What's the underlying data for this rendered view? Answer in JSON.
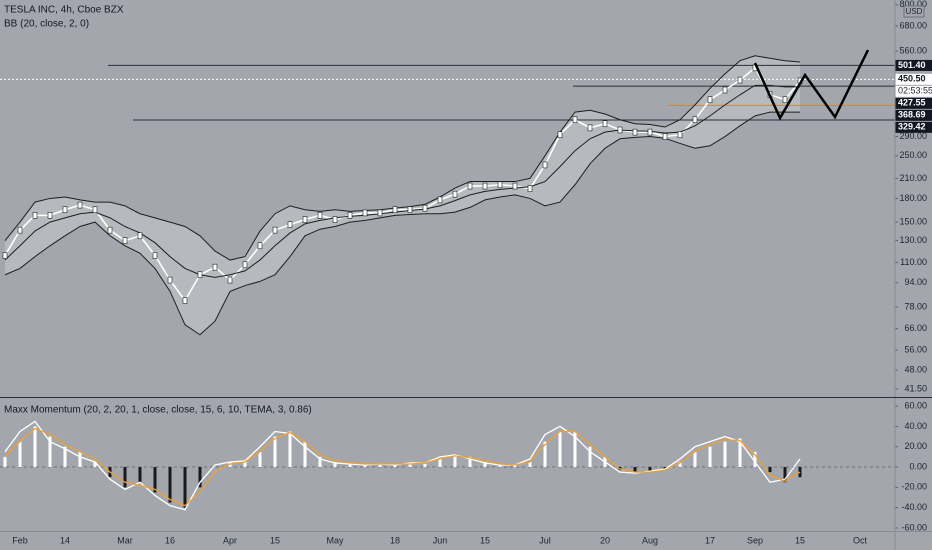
{
  "chart_data": [
    {
      "type": "line",
      "title": "TESLA INC, 4h, Cboe BZX",
      "subtitle": "BB (20, close, 2, 0)",
      "currency": "USD",
      "countdown": "02:53:55",
      "log_scale": true,
      "ylim": [
        39,
        830
      ],
      "yticks": [
        {
          "value": 800,
          "label": "800.00"
        },
        {
          "value": 680,
          "label": "680.00"
        },
        {
          "value": 560,
          "label": "560.00"
        },
        {
          "value": 290,
          "label": "290.00"
        },
        {
          "value": 250,
          "label": "250.00"
        },
        {
          "value": 210,
          "label": "210.00"
        },
        {
          "value": 180,
          "label": "180.00"
        },
        {
          "value": 150,
          "label": "150.00"
        },
        {
          "value": 130,
          "label": "130.00"
        },
        {
          "value": 110,
          "label": "110.00"
        },
        {
          "value": 94,
          "label": "94.00"
        },
        {
          "value": 78,
          "label": "78.00"
        },
        {
          "value": 66,
          "label": "66.00"
        },
        {
          "value": 56,
          "label": "56.00"
        },
        {
          "value": 48,
          "label": "48.00"
        },
        {
          "value": 41.5,
          "label": "41.50"
        }
      ],
      "price_levels": [
        {
          "value": 501.4,
          "label": "501.40",
          "color": "#2a2e39"
        },
        {
          "value": 450.5,
          "label": "450.50",
          "color": "#ffffff"
        },
        {
          "value": 427.55,
          "label": "427.55",
          "color": "#2a2e39"
        },
        {
          "value": 368.69,
          "label": "368.69",
          "color": "#c98a2b"
        },
        {
          "value": 329.42,
          "label": "329.42",
          "color": "#2a2e39"
        }
      ],
      "categories": [
        null,
        "Feb",
        null,
        null,
        "14",
        null,
        null,
        null,
        "Mar",
        null,
        null,
        "16",
        null,
        null,
        null,
        "Apr",
        null,
        null,
        "15",
        null,
        null,
        null,
        "May",
        null,
        null,
        null,
        "18",
        null,
        null,
        "Jun",
        null,
        null,
        "15",
        null,
        null,
        null,
        "Jul",
        null,
        null,
        null,
        "20",
        null,
        null,
        "Aug",
        null,
        null,
        null,
        "17",
        null,
        null,
        "Sep",
        null,
        null,
        "15",
        null,
        null,
        null,
        "Oct",
        null,
        null
      ],
      "series": [
        {
          "color": "#ffffff",
          "values": [
            116,
            141,
            158,
            158,
            165,
            171,
            165,
            141,
            130,
            135,
            116,
            96,
            82,
            100,
            106,
            96,
            108,
            125,
            141,
            147,
            153,
            158,
            153,
            158,
            161,
            161,
            165,
            165,
            167,
            178,
            186,
            198,
            198,
            200,
            198,
            194,
            233,
            294,
            330,
            310,
            320,
            305,
            300,
            300,
            290,
            294,
            330,
            385,
            415,
            448,
            492,
            400,
            385,
            445,
            null,
            null,
            null,
            null,
            null,
            null
          ]
        },
        {
          "color": "#1e1e1e",
          "values": [
            130,
            150,
            175,
            180,
            182,
            178,
            175,
            175,
            170,
            160,
            155,
            150,
            145,
            135,
            120,
            112,
            115,
            140,
            160,
            170,
            165,
            163,
            165,
            163,
            164,
            165,
            167,
            169,
            172,
            182,
            195,
            205,
            205,
            205,
            205,
            210,
            250,
            300,
            350,
            355,
            345,
            330,
            320,
            318,
            312,
            330,
            370,
            420,
            470,
            520,
            540,
            530,
            520,
            515,
            null,
            null,
            null,
            null,
            null,
            null
          ]
        },
        {
          "color": "#1e1e1e",
          "values": [
            112,
            125,
            140,
            150,
            155,
            160,
            162,
            155,
            145,
            138,
            128,
            115,
            105,
            100,
            98,
            100,
            103,
            112,
            125,
            138,
            148,
            152,
            155,
            157,
            158,
            160,
            162,
            164,
            166,
            170,
            177,
            185,
            190,
            193,
            195,
            197,
            205,
            230,
            260,
            285,
            300,
            305,
            303,
            302,
            298,
            300,
            315,
            340,
            370,
            400,
            430,
            430,
            425,
            425,
            null,
            null,
            null,
            null,
            null,
            null
          ]
        },
        {
          "color": "#1e1e1e",
          "values": [
            100,
            105,
            115,
            125,
            135,
            145,
            150,
            135,
            125,
            118,
            105,
            88,
            68,
            63,
            70,
            88,
            92,
            95,
            100,
            115,
            135,
            142,
            145,
            150,
            152,
            155,
            158,
            159,
            160,
            160,
            162,
            168,
            178,
            182,
            185,
            180,
            170,
            175,
            200,
            235,
            265,
            285,
            288,
            290,
            286,
            275,
            265,
            270,
            290,
            315,
            340,
            350,
            350,
            350,
            null,
            null,
            null,
            null,
            null,
            null
          ]
        }
      ],
      "band_fill": "#babdc1"
    },
    {
      "type": "bar",
      "title": "Maxx Momentum (20, 2, 20, 1, close, close, 15, 6, 10, TEMA, 3, 0.86)",
      "ylim": [
        -63,
        68
      ],
      "yticks": [
        {
          "value": 60,
          "label": "60.00"
        },
        {
          "value": 40,
          "label": "40.00"
        },
        {
          "value": 20,
          "label": "20.00"
        },
        {
          "value": 0,
          "label": "0.00"
        },
        {
          "value": -20,
          "label": "-20.00"
        },
        {
          "value": -40,
          "label": "-40.00"
        },
        {
          "value": -60,
          "label": "-60.00"
        }
      ],
      "values": [
        10,
        25,
        40,
        30,
        20,
        15,
        5,
        -10,
        -20,
        -15,
        -25,
        -35,
        -40,
        -20,
        0,
        5,
        5,
        15,
        30,
        35,
        25,
        10,
        5,
        3,
        2,
        3,
        2,
        3,
        3,
        8,
        12,
        10,
        5,
        3,
        2,
        5,
        25,
        35,
        35,
        20,
        10,
        -3,
        -5,
        -5,
        -3,
        5,
        15,
        20,
        25,
        28,
        15,
        -5,
        -15,
        -10,
        null,
        null,
        null,
        null,
        null,
        null
      ],
      "color": "#ffffff",
      "negative_color": "#1a1a1a",
      "series": [
        {
          "color": "#ffffff",
          "values": [
            15,
            35,
            45,
            25,
            18,
            10,
            5,
            -12,
            -22,
            -15,
            -28,
            -38,
            -42,
            -15,
            2,
            5,
            6,
            20,
            35,
            33,
            20,
            8,
            4,
            3,
            2,
            3,
            2,
            4,
            4,
            10,
            12,
            8,
            4,
            2,
            2,
            8,
            32,
            40,
            30,
            15,
            5,
            -5,
            -6,
            -4,
            -2,
            8,
            20,
            25,
            30,
            25,
            5,
            -15,
            -12,
            8,
            null,
            null,
            null,
            null,
            null,
            null
          ]
        },
        {
          "color": "#f0a030",
          "values": [
            10,
            25,
            38,
            32,
            22,
            15,
            8,
            -5,
            -15,
            -18,
            -22,
            -32,
            -38,
            -25,
            -5,
            3,
            5,
            15,
            28,
            34,
            25,
            12,
            6,
            4,
            3,
            3,
            3,
            3,
            4,
            8,
            11,
            9,
            6,
            3,
            2,
            5,
            22,
            35,
            35,
            22,
            10,
            -2,
            -5,
            -5,
            -3,
            4,
            15,
            22,
            27,
            26,
            12,
            -8,
            -14,
            -5,
            null,
            null,
            null,
            null,
            null,
            null
          ]
        }
      ]
    }
  ]
}
